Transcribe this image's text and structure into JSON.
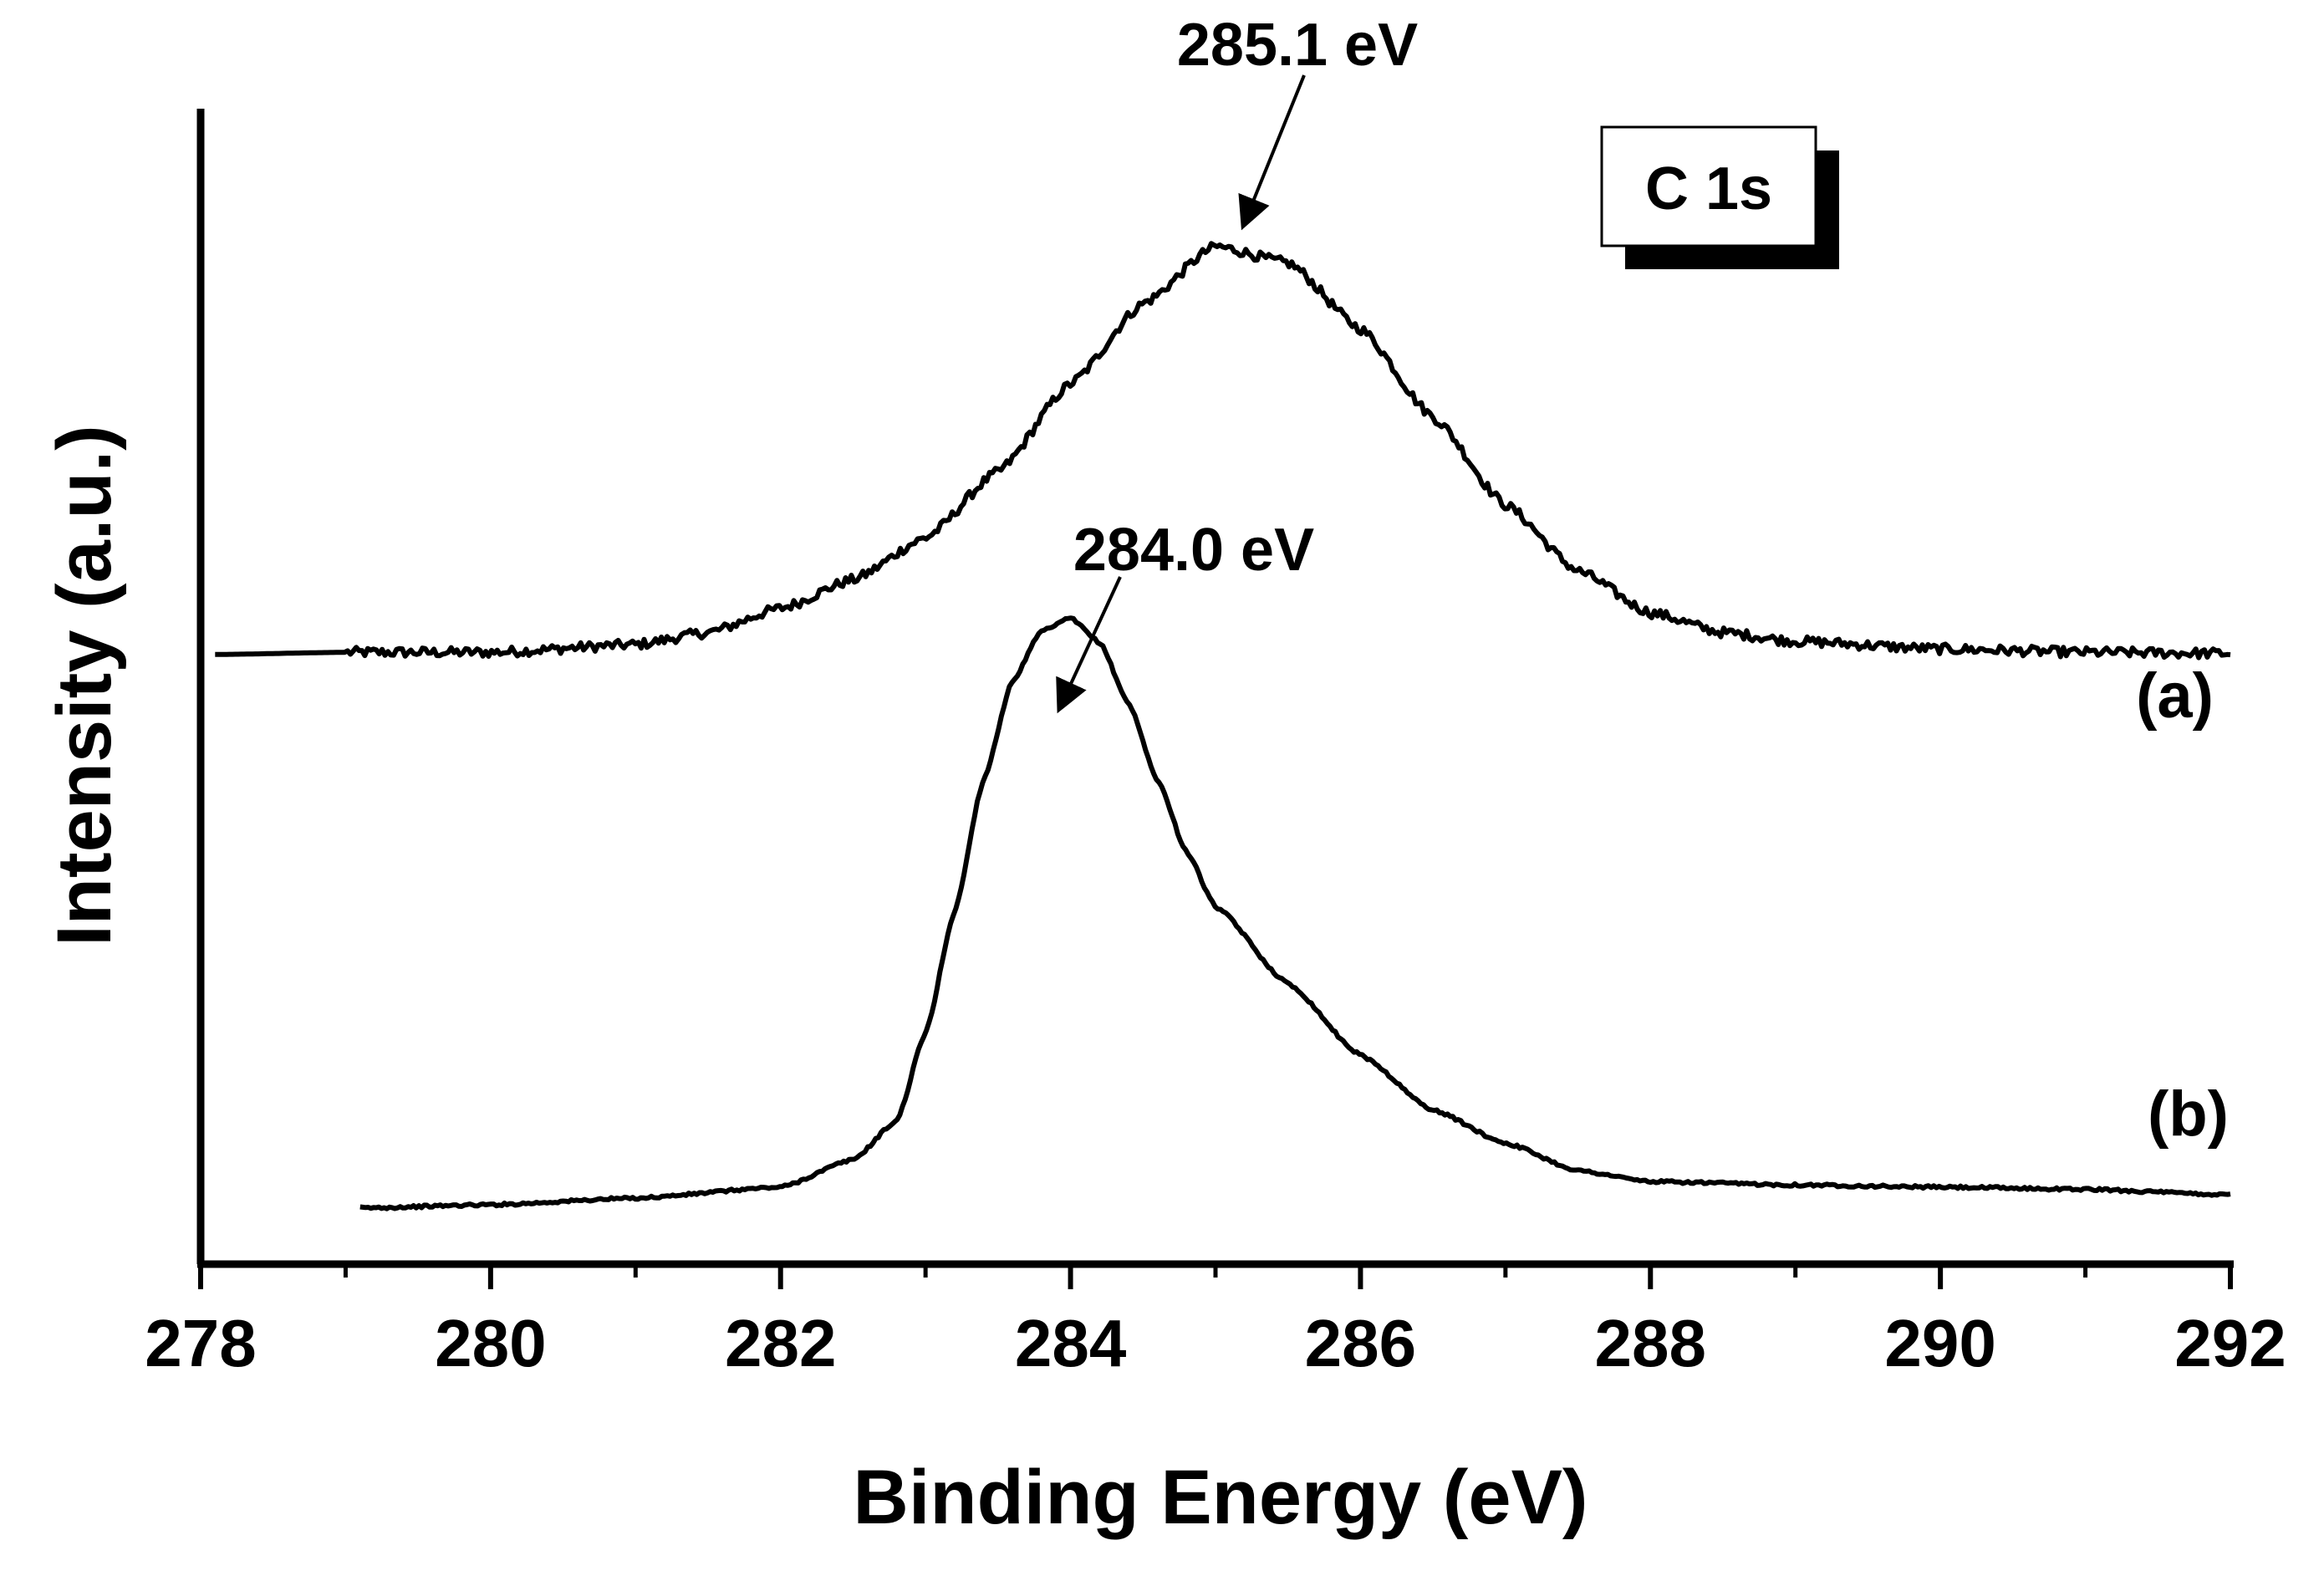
{
  "chart_data": {
    "type": "line",
    "title": "",
    "xlabel": "Binding Energy (eV)",
    "ylabel": "Intensity (a.u.)",
    "xlim": [
      278,
      292
    ],
    "ylim": [
      0,
      1.05
    ],
    "grid": false,
    "x_ticks": [
      "278",
      "280",
      "282",
      "284",
      "286",
      "288",
      "290",
      "292"
    ],
    "x_tick_values": [
      278,
      280,
      282,
      284,
      286,
      288,
      290,
      292
    ],
    "x_minor_step": 1,
    "y_ticks_shown": false,
    "legend": {
      "label": "C 1s",
      "placement": "top-right"
    },
    "series": [
      {
        "name": "(a)",
        "label": "(a)",
        "x": [
          278.1,
          279.0,
          280.0,
          281.0,
          281.5,
          282.0,
          282.5,
          283.0,
          283.5,
          284.0,
          284.5,
          285.0,
          285.5,
          286.0,
          286.5,
          287.0,
          287.5,
          288.0,
          288.5,
          289.0,
          290.0,
          291.0,
          292.0
        ],
        "y": [
          0.554,
          0.556,
          0.556,
          0.563,
          0.574,
          0.596,
          0.622,
          0.66,
          0.72,
          0.8,
          0.873,
          0.925,
          0.91,
          0.85,
          0.77,
          0.69,
          0.63,
          0.592,
          0.574,
          0.566,
          0.559,
          0.556,
          0.555
        ]
      },
      {
        "name": "(b)",
        "label": "(b)",
        "x": [
          279.1,
          280.0,
          281.0,
          282.0,
          282.5,
          282.8,
          283.0,
          283.2,
          283.4,
          283.6,
          283.8,
          284.0,
          284.2,
          284.4,
          284.6,
          284.8,
          285.0,
          285.5,
          286.0,
          286.5,
          287.0,
          287.5,
          288.0,
          289.0,
          290.0,
          291.0,
          292.0
        ],
        "y": [
          0.051,
          0.054,
          0.06,
          0.07,
          0.095,
          0.13,
          0.21,
          0.32,
          0.44,
          0.53,
          0.575,
          0.587,
          0.565,
          0.51,
          0.44,
          0.375,
          0.325,
          0.255,
          0.19,
          0.14,
          0.11,
          0.085,
          0.075,
          0.072,
          0.07,
          0.068,
          0.063
        ]
      }
    ],
    "annotations": [
      {
        "text": "285.1 eV",
        "target_x": 285.1,
        "series": "(a)"
      },
      {
        "text": "284.0 eV",
        "target_x": 284.0,
        "series": "(b)"
      }
    ]
  }
}
